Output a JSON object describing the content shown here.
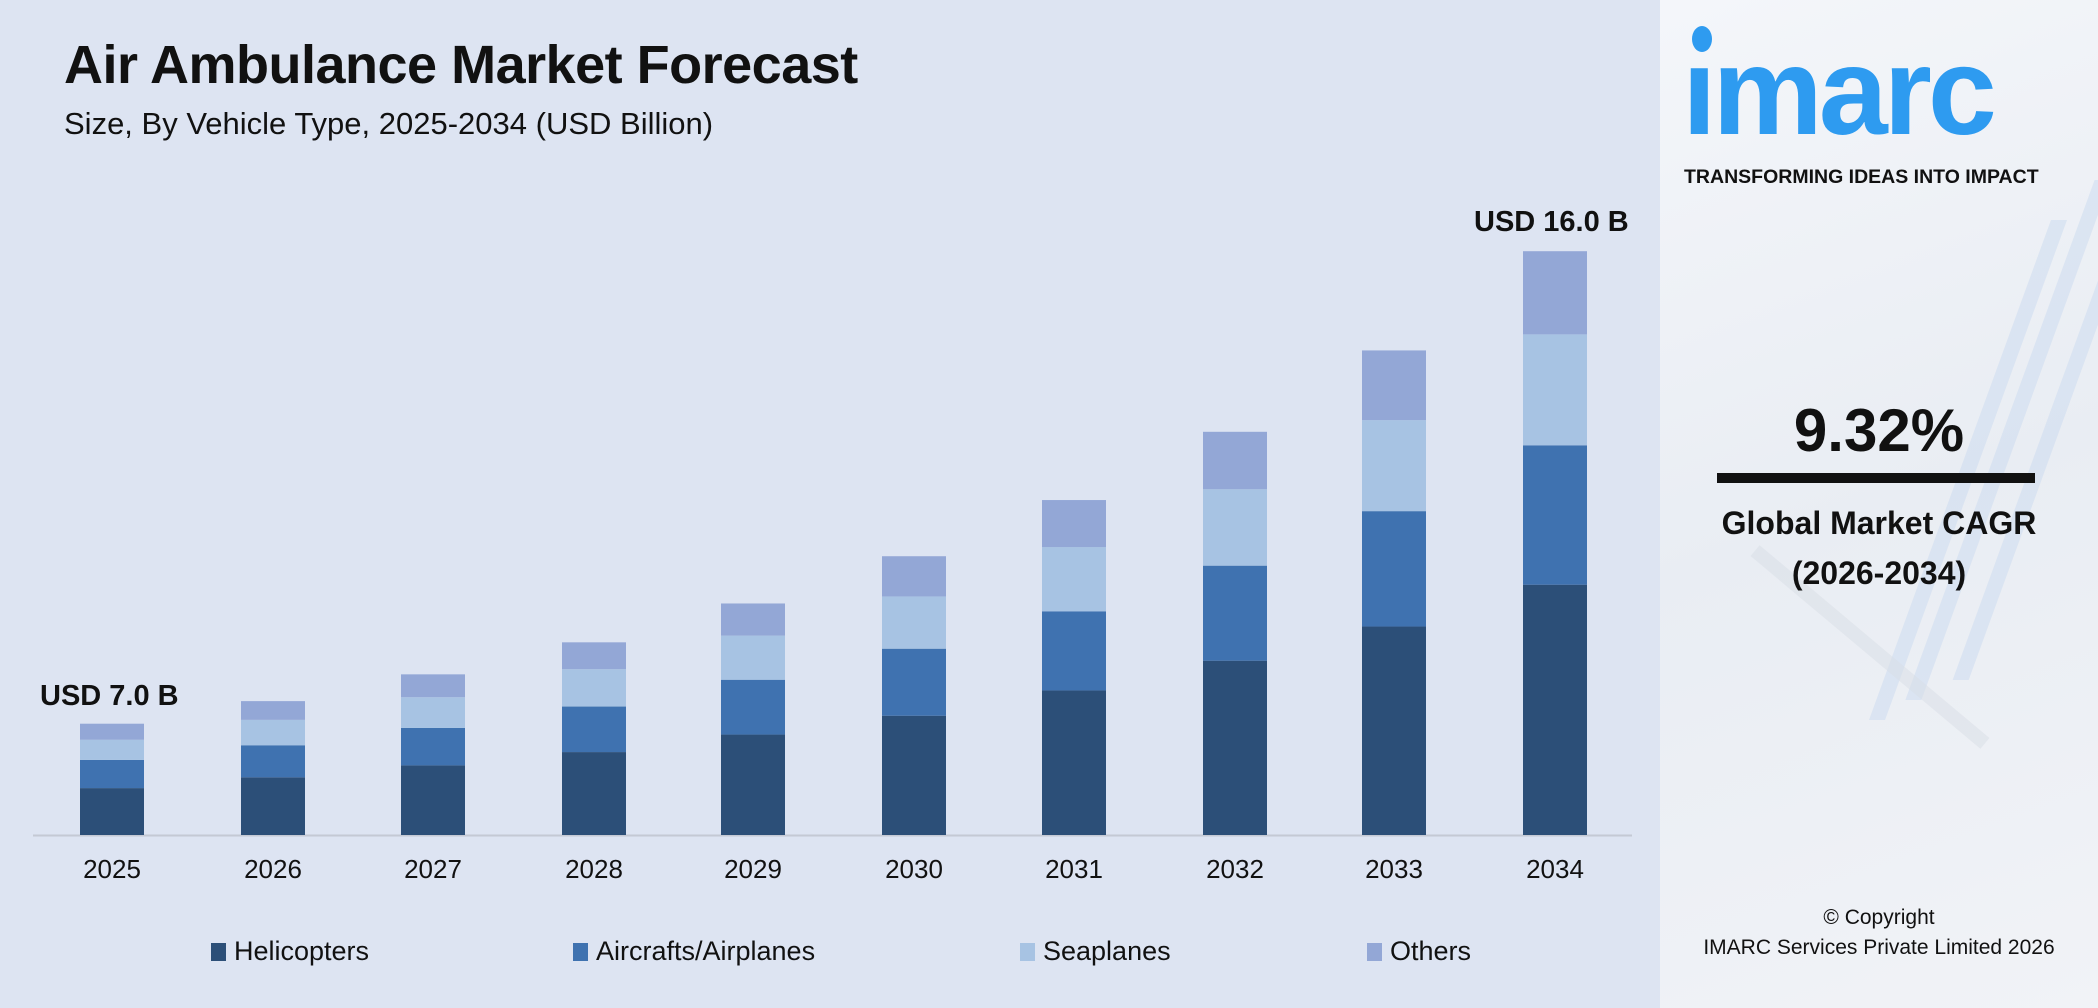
{
  "chart_data": {
    "type": "bar",
    "stacked": true,
    "title": "Air Ambulance Market Forecast",
    "subtitle": "Size, By Vehicle Type, 2025-2034 (USD Billion)",
    "xlabel": "",
    "ylabel": "",
    "grid": false,
    "legend_position": "bottom",
    "categories": [
      "2025",
      "2026",
      "2027",
      "2028",
      "2029",
      "2030",
      "2031",
      "2032",
      "2033",
      "2034"
    ],
    "series": [
      {
        "name": "Helicopters",
        "color": "#2c4f78",
        "values": [
          2.95,
          3.2,
          3.44,
          3.68,
          4.03,
          4.36,
          4.86,
          5.43,
          6.07,
          6.86
        ]
      },
      {
        "name": "Aircrafts/Airplanes",
        "color": "#3f72b0",
        "values": [
          1.77,
          1.78,
          1.85,
          2.02,
          2.2,
          2.45,
          2.66,
          2.96,
          3.36,
          3.82
        ]
      },
      {
        "name": "Seaplanes",
        "color": "#a7c3e3",
        "values": [
          1.27,
          1.41,
          1.52,
          1.66,
          1.77,
          1.91,
          2.16,
          2.38,
          2.65,
          3.04
        ]
      },
      {
        "name": "Others",
        "color": "#93a7d6",
        "values": [
          1.01,
          1.04,
          1.13,
          1.19,
          1.29,
          1.47,
          1.58,
          1.79,
          2.03,
          2.28
        ]
      }
    ],
    "annotations": {
      "first": "USD 7.0 B",
      "last": "USD 16.0 B"
    }
  },
  "brand": {
    "logo": "imarc",
    "tagline": "TRANSFORMING IDEAS INTO IMPACT",
    "color": "#2e9bf0"
  },
  "cagr": {
    "value": "9.32%",
    "label": "Global Market CAGR",
    "period": "(2026-2034)"
  },
  "copyright": {
    "line1": "© Copyright",
    "line2": "IMARC Services Private Limited 2026"
  }
}
